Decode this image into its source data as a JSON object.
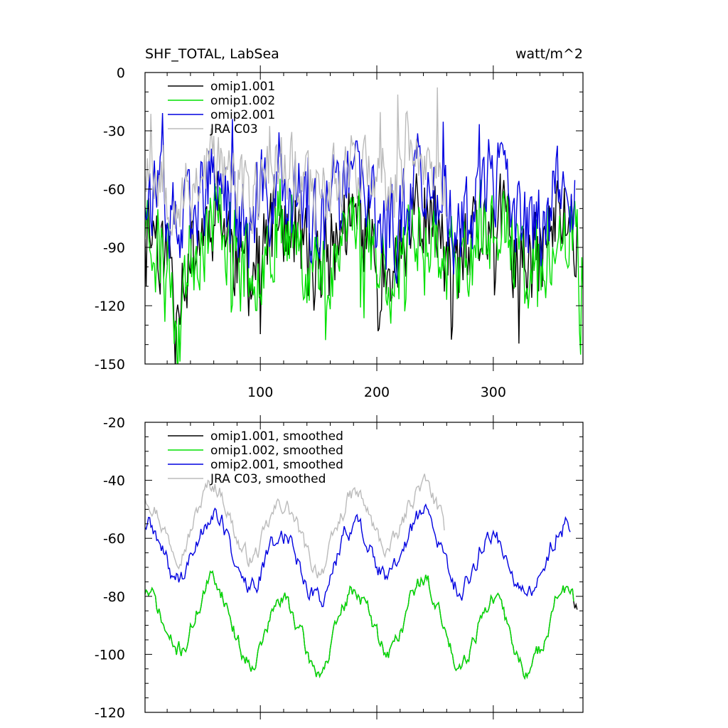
{
  "chart_data": [
    {
      "type": "line",
      "title": "SHF_TOTAL, LabSea",
      "units": "watt/m^2",
      "xlim": [
        1,
        377
      ],
      "ylim": [
        -150,
        0
      ],
      "xticks": [
        100,
        200,
        300
      ],
      "yticks": [
        0,
        -30,
        -60,
        -90,
        -120,
        -150
      ],
      "yminor_step": 10,
      "xminor_step": 20,
      "legend_position": "top-left",
      "series": [
        {
          "name": "omip1.001",
          "color": "#000000",
          "shape": "raw",
          "mean": -88,
          "amp": 14,
          "noise": 22,
          "spikes": -0.35,
          "seed": 11,
          "len": 372
        },
        {
          "name": "omip1.002",
          "color": "#00e000",
          "shape": "raw",
          "mean": -88,
          "amp": 14,
          "noise": 22,
          "spikes": -0.35,
          "seed": 23,
          "len": 377
        },
        {
          "name": "omip2.001",
          "color": "#0000e0",
          "shape": "raw",
          "mean": -70,
          "amp": 12,
          "noise": 22,
          "spikes": 0.35,
          "seed": 37,
          "len": 370
        },
        {
          "name": "JRA C03",
          "color": "#bbbbbb",
          "shape": "raw",
          "mean": -55,
          "amp": 10,
          "noise": 17,
          "spikes": 0.4,
          "seed": 53,
          "len": 260
        }
      ]
    },
    {
      "type": "line",
      "title": "",
      "units": "",
      "xlim": [
        1,
        377
      ],
      "ylim": [
        -120,
        -20
      ],
      "xticks": [
        100,
        200,
        300
      ],
      "yticks": [
        -20,
        -40,
        -60,
        -80,
        -100,
        -120
      ],
      "yminor_step": 5,
      "xminor_step": 20,
      "legend_position": "top-left",
      "series": [
        {
          "name": "omip1.001, smoothed",
          "color": "#000000",
          "shape": "smooth",
          "mean": -90,
          "amp": 12,
          "noise": 2.5,
          "spikes": 0,
          "seed": 71,
          "len": 372
        },
        {
          "name": "omip1.002, smoothed",
          "color": "#00e000",
          "shape": "smooth",
          "mean": -90,
          "amp": 12,
          "noise": 2.5,
          "spikes": 0,
          "seed": 71,
          "len": 369
        },
        {
          "name": "omip2.001, smoothed",
          "color": "#0000e0",
          "shape": "smooth",
          "mean": -66,
          "amp": 11,
          "noise": 2.8,
          "spikes": 0,
          "seed": 89,
          "len": 366
        },
        {
          "name": "JRA C03, smoothed",
          "color": "#bbbbbb",
          "shape": "smooth",
          "mean": -56,
          "amp": 11,
          "noise": 2.5,
          "spikes": 0,
          "seed": 97,
          "len": 258
        }
      ]
    }
  ]
}
